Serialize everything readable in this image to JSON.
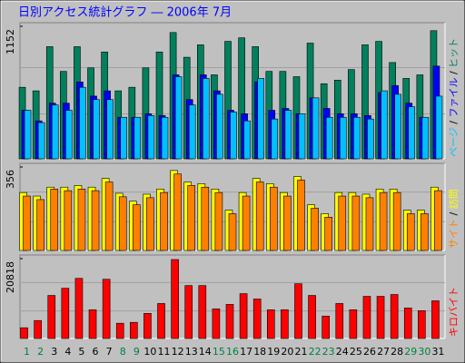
{
  "title": "日別アクセス統計グラフ ― 2006年 7月",
  "chart_data": [
    {
      "type": "bar",
      "ylim": [
        0,
        1152
      ],
      "yticks": [
        1152
      ],
      "legend_separator": " / ",
      "series": [
        {
          "name": "ヒット",
          "color": "#00805c",
          "values": [
            622,
            591,
            975,
            760,
            975,
            791,
            929,
            591,
            622,
            791,
            929,
            1098,
            883,
            991,
            730,
            1021,
            1052,
            975,
            760,
            760,
            714,
            1006,
            653,
            684,
            776,
            991,
            1021,
            837,
            699,
            730,
            1114
          ]
        },
        {
          "name": "ファイル",
          "color": "#0000ff",
          "values": [
            422,
            330,
            484,
            484,
            668,
            545,
            591,
            361,
            361,
            392,
            376,
            730,
            515,
            730,
            591,
            422,
            392,
            668,
            422,
            438,
            392,
            530,
            438,
            392,
            392,
            376,
            576,
            637,
            484,
            361,
            806
          ]
        },
        {
          "name": "ページ",
          "color": "#00c0ff",
          "values": [
            422,
            315,
            468,
            422,
            622,
            515,
            515,
            361,
            361,
            376,
            361,
            714,
            468,
            699,
            561,
            407,
            330,
            699,
            346,
            422,
            392,
            530,
            361,
            361,
            361,
            346,
            591,
            561,
            453,
            361,
            545
          ]
        }
      ]
    },
    {
      "type": "bar",
      "ylim": [
        0,
        356
      ],
      "yticks": [
        356
      ],
      "legend_separator": " / ",
      "series": [
        {
          "name": "訪問",
          "color": "#ffff00",
          "values": [
            247,
            232,
            270,
            270,
            277,
            270,
            307,
            244,
            210,
            240,
            262,
            341,
            292,
            285,
            262,
            172,
            247,
            307,
            285,
            247,
            315,
            195,
            157,
            247,
            247,
            240,
            262,
            262,
            172,
            172,
            270
          ]
        },
        {
          "name": "サイト",
          "color": "#ff8000",
          "values": [
            232,
            217,
            262,
            255,
            262,
            255,
            292,
            229,
            195,
            225,
            247,
            326,
            277,
            270,
            247,
            157,
            232,
            292,
            270,
            232,
            300,
            180,
            142,
            232,
            232,
            225,
            247,
            247,
            157,
            157,
            255
          ]
        }
      ]
    },
    {
      "type": "bar",
      "ylim": [
        0,
        20818
      ],
      "yticks": [
        20818
      ],
      "categories": [
        "1",
        "2",
        "3",
        "4",
        "5",
        "6",
        "7",
        "8",
        "9",
        "10",
        "11",
        "12",
        "13",
        "14",
        "15",
        "16",
        "17",
        "18",
        "19",
        "20",
        "21",
        "22",
        "23",
        "24",
        "25",
        "26",
        "27",
        "28",
        "29",
        "30",
        "31"
      ],
      "category_colors": [
        "#008040",
        "#008040",
        "#000000",
        "#000000",
        "#000000",
        "#000000",
        "#000000",
        "#008040",
        "#008040",
        "#000000",
        "#000000",
        "#000000",
        "#000000",
        "#000000",
        "#008040",
        "#008040",
        "#000000",
        "#000000",
        "#000000",
        "#000000",
        "#000000",
        "#008040",
        "#008040",
        "#000000",
        "#000000",
        "#000000",
        "#000000",
        "#000000",
        "#008040",
        "#008040",
        "#000000"
      ],
      "series": [
        {
          "name": "キロバイト",
          "color": "#ff0000",
          "values": [
            2807,
            4678,
            11228,
            13099,
            15672,
            7485,
            15438,
            3977,
            4210,
            6550,
            9123,
            20584,
            13800,
            13800,
            7719,
            8888,
            11695,
            10292,
            7485,
            7485,
            14268,
            11228,
            5848,
            9123,
            7485,
            10994,
            10994,
            11461,
            7953,
            7251,
            9824
          ]
        }
      ]
    }
  ]
}
